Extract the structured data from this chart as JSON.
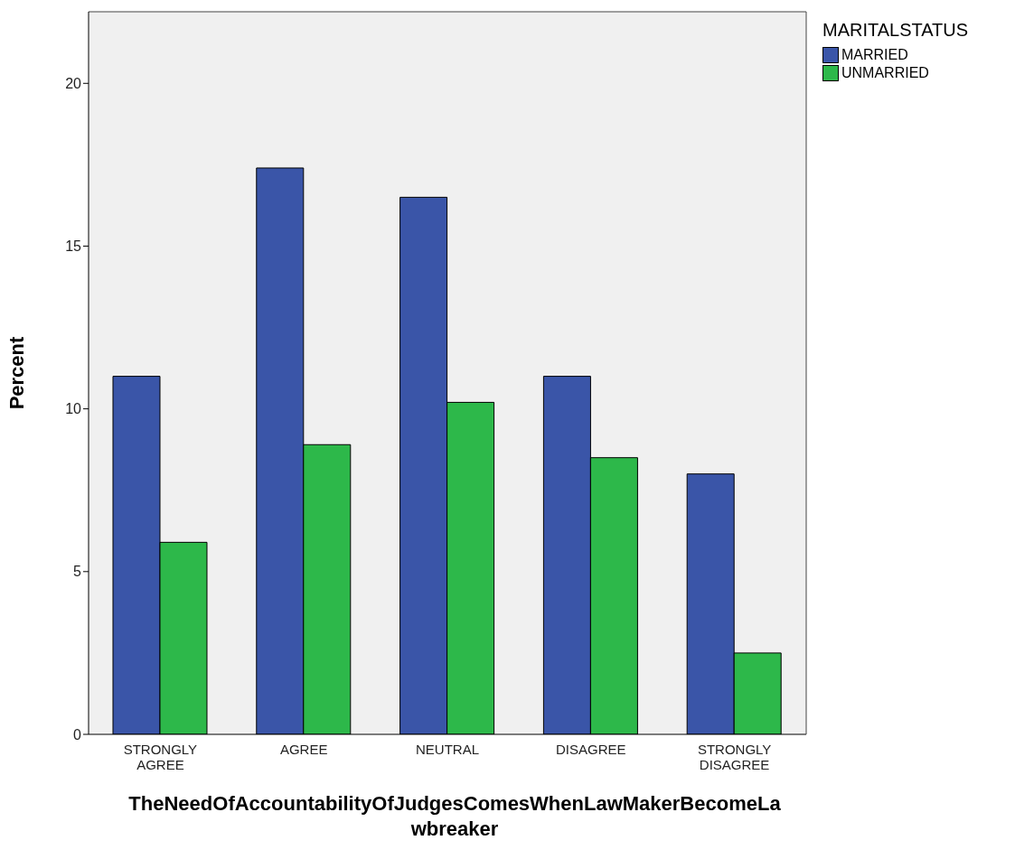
{
  "chart_data": {
    "type": "bar",
    "xlabel": "TheNeedOfAccountabilityOfJudgesComesWhenLawMakerBecomeLawbreaker",
    "ylabel": "Percent",
    "legend_title": "MARITALSTATUS",
    "categories": [
      "STRONGLY AGREE",
      "AGREE",
      "NEUTRAL",
      "DISAGREE",
      "STRONGLY DISAGREE"
    ],
    "series": [
      {
        "name": "MARRIED",
        "color": "#3a55a8",
        "values": [
          11.0,
          17.4,
          16.5,
          11.0,
          8.0
        ]
      },
      {
        "name": "UNMARRIED",
        "color": "#2db84a",
        "values": [
          5.9,
          8.9,
          10.2,
          8.5,
          2.5
        ]
      }
    ],
    "ylim": [
      0,
      22.2
    ],
    "yticks": [
      0,
      5,
      10,
      15,
      20
    ],
    "grid": false,
    "legend": "top right"
  }
}
